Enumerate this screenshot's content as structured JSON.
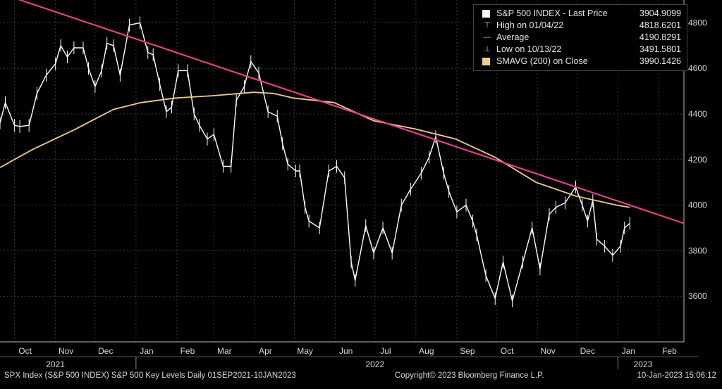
{
  "chart_data": {
    "type": "line",
    "title": "",
    "y_ticks": [
      "4800",
      "4600",
      "4400",
      "4200",
      "4000",
      "3800",
      "3600"
    ],
    "ylim": [
      3400,
      4900
    ],
    "x_month_labels": [
      "Oct",
      "Nov",
      "Dec",
      "Jan",
      "Feb",
      "Mar",
      "Apr",
      "May",
      "Jun",
      "Jul",
      "Aug",
      "Sep",
      "Oct",
      "Nov",
      "Dec",
      "Jan",
      "Feb"
    ],
    "x_month_dates": [
      "2021-10-01",
      "2021-11-01",
      "2021-12-01",
      "2022-01-01",
      "2022-02-01",
      "2022-03-01",
      "2022-04-01",
      "2022-05-01",
      "2022-06-01",
      "2022-07-01",
      "2022-08-01",
      "2022-09-01",
      "2022-10-01",
      "2022-11-01",
      "2022-12-01",
      "2023-01-01",
      "2023-02-01"
    ],
    "x_year_labels": [
      {
        "label": "2021",
        "date": "2021-11-01"
      },
      {
        "label": "2022",
        "date": "2022-07-01"
      },
      {
        "label": "2023",
        "date": "2023-01-20"
      }
    ],
    "x_range": [
      "2021-09-20",
      "2023-02-20"
    ],
    "series": [
      {
        "name": "S&P 500 INDEX",
        "color": "#ffffff",
        "points": [
          [
            "2021-09-20",
            4360
          ],
          [
            "2021-09-24",
            4450
          ],
          [
            "2021-10-01",
            4350
          ],
          [
            "2021-10-05",
            4345
          ],
          [
            "2021-10-12",
            4350
          ],
          [
            "2021-10-18",
            4490
          ],
          [
            "2021-10-25",
            4570
          ],
          [
            "2021-11-01",
            4620
          ],
          [
            "2021-11-05",
            4700
          ],
          [
            "2021-11-10",
            4650
          ],
          [
            "2021-11-15",
            4690
          ],
          [
            "2021-11-22",
            4690
          ],
          [
            "2021-11-26",
            4600
          ],
          [
            "2021-12-01",
            4520
          ],
          [
            "2021-12-06",
            4590
          ],
          [
            "2021-12-10",
            4710
          ],
          [
            "2021-12-15",
            4700
          ],
          [
            "2021-12-20",
            4570
          ],
          [
            "2021-12-27",
            4790
          ],
          [
            "2022-01-04",
            4800
          ],
          [
            "2022-01-10",
            4670
          ],
          [
            "2022-01-14",
            4660
          ],
          [
            "2022-01-19",
            4530
          ],
          [
            "2022-01-24",
            4410
          ],
          [
            "2022-01-28",
            4430
          ],
          [
            "2022-02-02",
            4590
          ],
          [
            "2022-02-09",
            4590
          ],
          [
            "2022-02-14",
            4400
          ],
          [
            "2022-02-18",
            4350
          ],
          [
            "2022-02-24",
            4290
          ],
          [
            "2022-03-01",
            4310
          ],
          [
            "2022-03-08",
            4170
          ],
          [
            "2022-03-14",
            4170
          ],
          [
            "2022-03-18",
            4460
          ],
          [
            "2022-03-24",
            4520
          ],
          [
            "2022-03-29",
            4630
          ],
          [
            "2022-04-04",
            4580
          ],
          [
            "2022-04-11",
            4410
          ],
          [
            "2022-04-18",
            4390
          ],
          [
            "2022-04-22",
            4270
          ],
          [
            "2022-04-26",
            4180
          ],
          [
            "2022-05-02",
            4150
          ],
          [
            "2022-05-05",
            4150
          ],
          [
            "2022-05-09",
            3990
          ],
          [
            "2022-05-12",
            3930
          ],
          [
            "2022-05-20",
            3900
          ],
          [
            "2022-05-27",
            4150
          ],
          [
            "2022-06-02",
            4170
          ],
          [
            "2022-06-08",
            4120
          ],
          [
            "2022-06-13",
            3750
          ],
          [
            "2022-06-16",
            3670
          ],
          [
            "2022-06-24",
            3910
          ],
          [
            "2022-06-30",
            3790
          ],
          [
            "2022-07-07",
            3900
          ],
          [
            "2022-07-14",
            3790
          ],
          [
            "2022-07-21",
            4000
          ],
          [
            "2022-07-28",
            4070
          ],
          [
            "2022-08-05",
            4140
          ],
          [
            "2022-08-11",
            4210
          ],
          [
            "2022-08-16",
            4300
          ],
          [
            "2022-08-22",
            4140
          ],
          [
            "2022-08-26",
            4060
          ],
          [
            "2022-09-01",
            3970
          ],
          [
            "2022-09-08",
            4000
          ],
          [
            "2022-09-13",
            3930
          ],
          [
            "2022-09-16",
            3870
          ],
          [
            "2022-09-23",
            3690
          ],
          [
            "2022-09-30",
            3590
          ],
          [
            "2022-10-06",
            3750
          ],
          [
            "2022-10-13",
            3580
          ],
          [
            "2022-10-21",
            3750
          ],
          [
            "2022-10-28",
            3900
          ],
          [
            "2022-11-03",
            3720
          ],
          [
            "2022-11-10",
            3960
          ],
          [
            "2022-11-15",
            3990
          ],
          [
            "2022-11-22",
            4010
          ],
          [
            "2022-11-30",
            4080
          ],
          [
            "2022-12-05",
            4000
          ],
          [
            "2022-12-09",
            3930
          ],
          [
            "2022-12-13",
            4020
          ],
          [
            "2022-12-16",
            3850
          ],
          [
            "2022-12-22",
            3820
          ],
          [
            "2022-12-28",
            3780
          ],
          [
            "2023-01-03",
            3820
          ],
          [
            "2023-01-06",
            3900
          ],
          [
            "2023-01-10",
            3920
          ]
        ]
      },
      {
        "name": "SMAVG (200) on Close",
        "color": "#f0cc8c",
        "points": [
          [
            "2021-09-20",
            4165
          ],
          [
            "2021-10-15",
            4245
          ],
          [
            "2021-11-15",
            4330
          ],
          [
            "2021-12-15",
            4420
          ],
          [
            "2022-01-05",
            4450
          ],
          [
            "2022-01-31",
            4470
          ],
          [
            "2022-02-28",
            4480
          ],
          [
            "2022-03-31",
            4495
          ],
          [
            "2022-04-15",
            4490
          ],
          [
            "2022-04-30",
            4470
          ],
          [
            "2022-05-31",
            4450
          ],
          [
            "2022-06-30",
            4370
          ],
          [
            "2022-07-31",
            4335
          ],
          [
            "2022-08-31",
            4290
          ],
          [
            "2022-09-30",
            4210
          ],
          [
            "2022-10-31",
            4100
          ],
          [
            "2022-11-30",
            4040
          ],
          [
            "2022-12-31",
            4000
          ],
          [
            "2023-01-10",
            3990
          ]
        ]
      },
      {
        "name": "Trendline",
        "color": "#e0428c",
        "points": [
          [
            "2021-09-20",
            4930
          ],
          [
            "2023-02-20",
            3920
          ]
        ]
      }
    ],
    "legend": {
      "placement": "top-right",
      "rows": [
        {
          "label": "S&P 500 INDEX - Last Price",
          "value": "3904.9099",
          "icon": "square-swatch",
          "color": "#ffffff"
        },
        {
          "label": "High on 01/04/22",
          "value": "4818.6201",
          "icon": "high-marker-icon"
        },
        {
          "label": "Average",
          "value": "4190.8291",
          "icon": "average-marker-icon"
        },
        {
          "label": "Low on 10/13/22",
          "value": "3491.5801",
          "icon": "low-marker-icon"
        },
        {
          "label": "SMAVG (200)  on Close",
          "value": "3990.1426",
          "icon": "square-swatch",
          "color": "#f0cc8c"
        }
      ]
    },
    "grid": true
  },
  "footer": {
    "left": "SPX Index (S&P 500 INDEX) S&P 500 Key Levels  Daily 01SEP2021-10JAN2023",
    "center": "Copyright© 2023 Bloomberg Finance L.P.",
    "right": "10-Jan-2023 15:06:12"
  }
}
